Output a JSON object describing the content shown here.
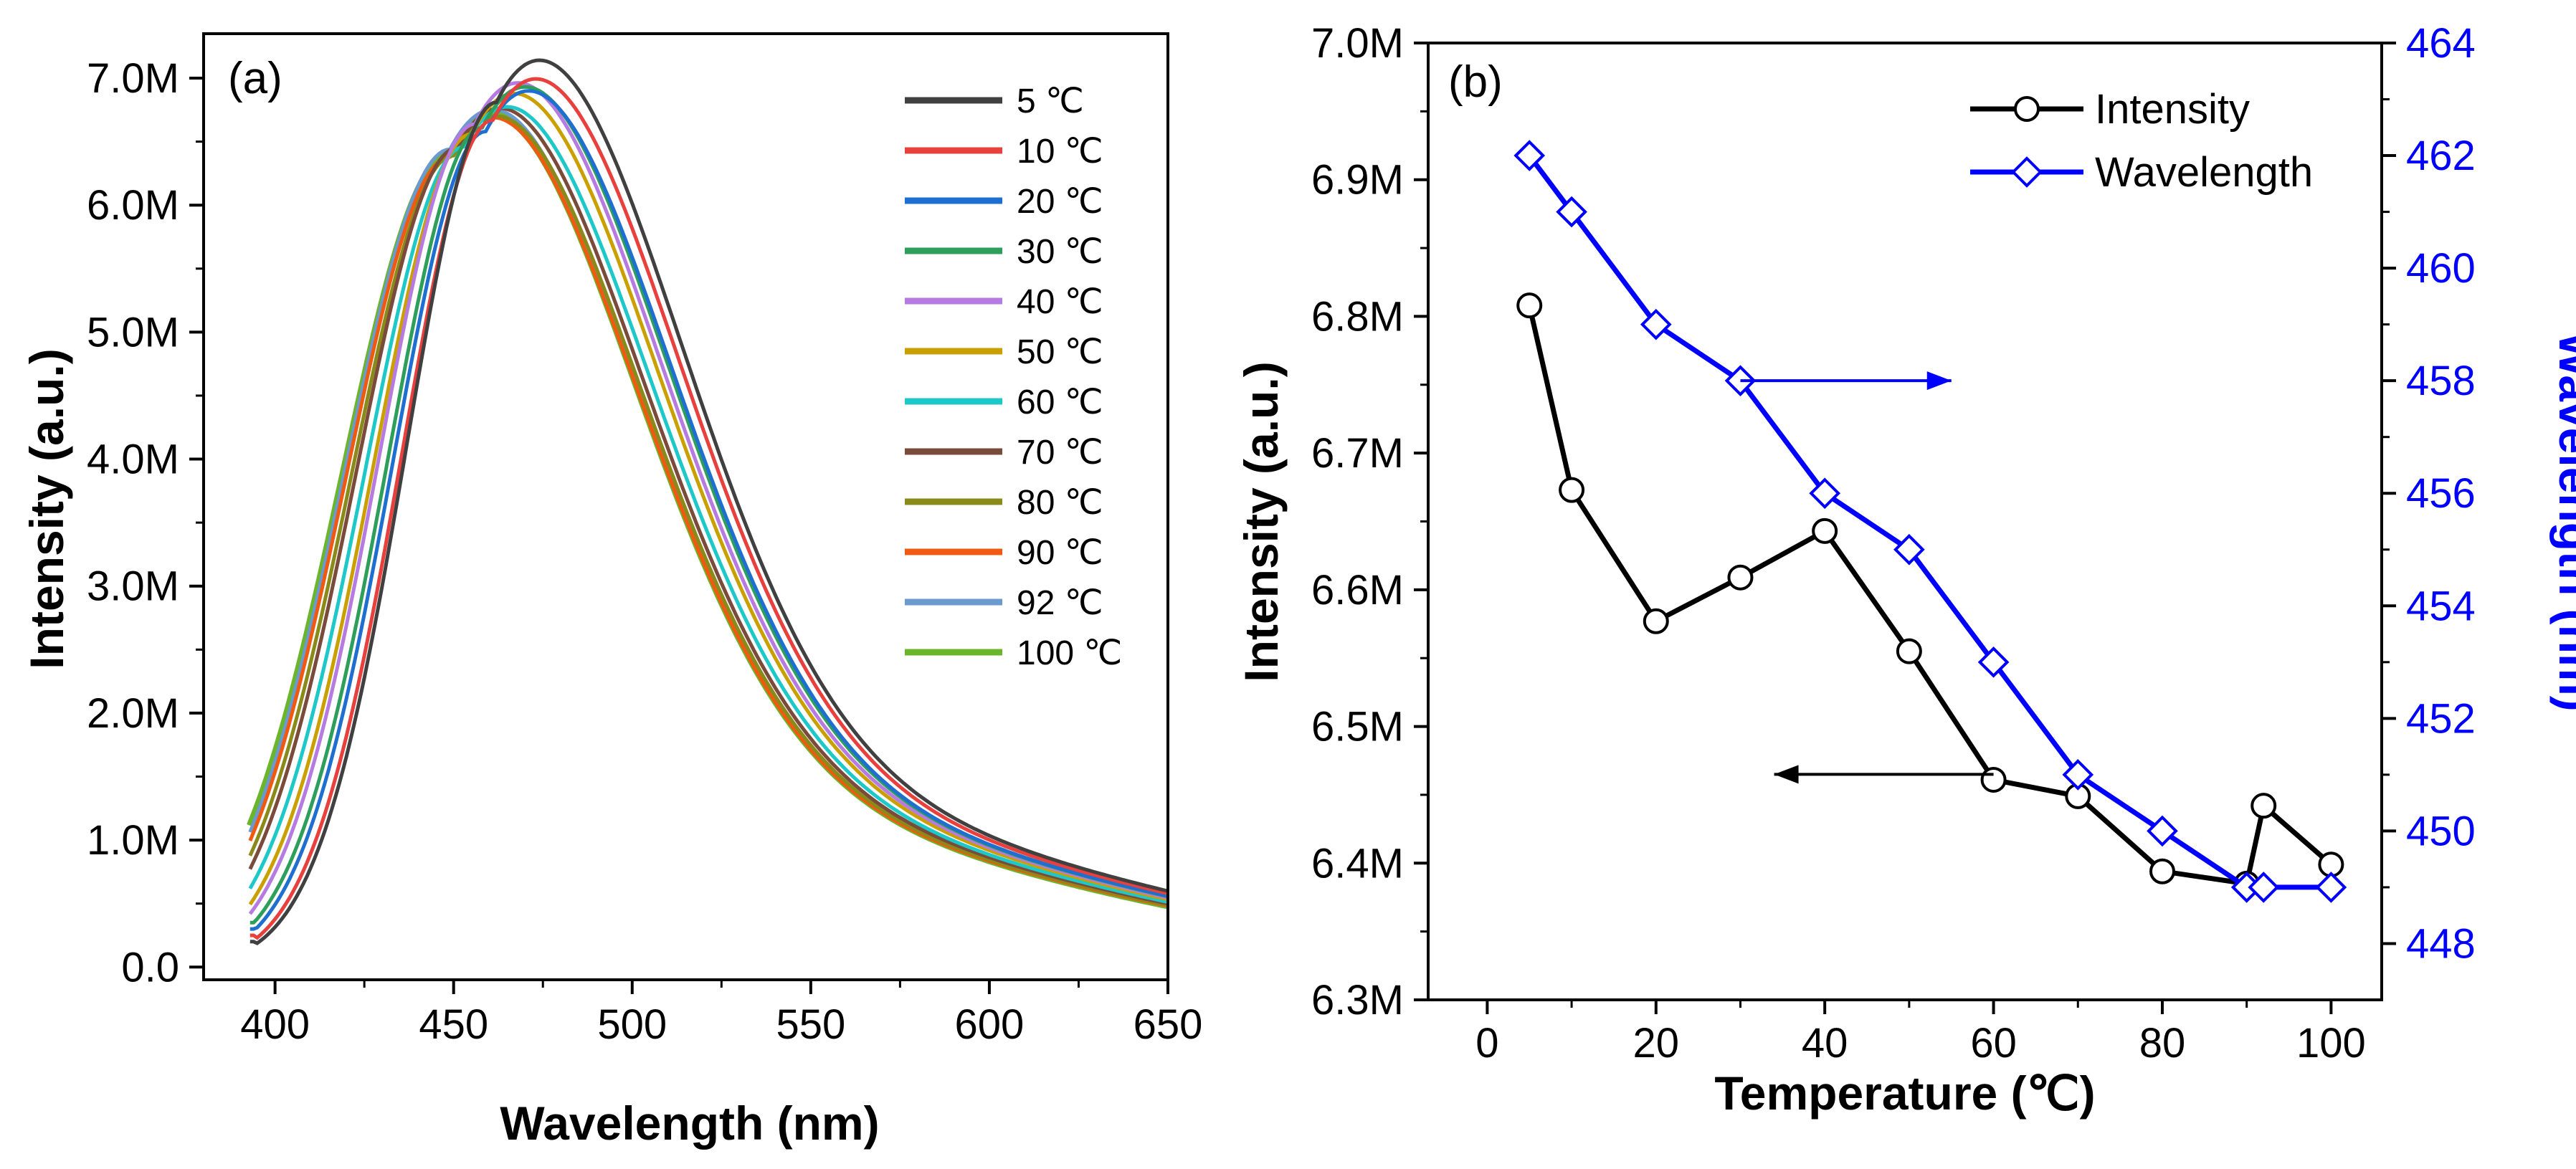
{
  "chart_data": [
    {
      "type": "line",
      "panel_label": "(a)",
      "xlabel": "Wavelength (nm)",
      "ylabel": "Intensity (a.u.)",
      "xlim": [
        380,
        650
      ],
      "ylim": [
        -0.1,
        7.35
      ],
      "x_ticks": [
        400,
        450,
        500,
        550,
        600,
        650
      ],
      "x_tick_labels": [
        "400",
        "450",
        "500",
        "550",
        "600",
        "650"
      ],
      "y_ticks": [
        0,
        1,
        2,
        3,
        4,
        5,
        6,
        7
      ],
      "y_tick_labels": [
        "0.0",
        "1.0M",
        "2.0M",
        "3.0M",
        "4.0M",
        "5.0M",
        "6.0M",
        "7.0M"
      ],
      "y_unit": "M",
      "legend_position": "top-right",
      "x_start": 393,
      "x_end": 650,
      "series": [
        {
          "name": "5 ℃",
          "color": "#404040",
          "peak_x": 462,
          "peak_y": 6.81,
          "start_y": 0.2
        },
        {
          "name": "10 ℃",
          "color": "#e8403c",
          "peak_x": 461,
          "peak_y": 6.67,
          "start_y": 0.25
        },
        {
          "name": "20 ℃",
          "color": "#1f6fd0",
          "peak_x": 459,
          "peak_y": 6.58,
          "start_y": 0.3
        },
        {
          "name": "30 ℃",
          "color": "#2e9e5b",
          "peak_x": 458,
          "peak_y": 6.61,
          "start_y": 0.35
        },
        {
          "name": "40 ℃",
          "color": "#b57be0",
          "peak_x": 456,
          "peak_y": 6.64,
          "start_y": 0.38
        },
        {
          "name": "50 ℃",
          "color": "#c9a000",
          "peak_x": 455,
          "peak_y": 6.56,
          "start_y": 0.45
        },
        {
          "name": "60 ℃",
          "color": "#1ec8c8",
          "peak_x": 453,
          "peak_y": 6.46,
          "start_y": 0.55
        },
        {
          "name": "70 ℃",
          "color": "#7a4a3a",
          "peak_x": 451,
          "peak_y": 6.45,
          "start_y": 0.62
        },
        {
          "name": "80 ℃",
          "color": "#8a8a1a",
          "peak_x": 450,
          "peak_y": 6.39,
          "start_y": 0.68
        },
        {
          "name": "90 ℃",
          "color": "#f05a10",
          "peak_x": 449,
          "peak_y": 6.38,
          "start_y": 0.72
        },
        {
          "name": "92 ℃",
          "color": "#6a9ad0",
          "peak_x": 449,
          "peak_y": 6.44,
          "start_y": 0.75
        },
        {
          "name": "100 ℃",
          "color": "#6ab52a",
          "peak_x": 449,
          "peak_y": 6.4,
          "start_y": 0.82
        }
      ]
    },
    {
      "type": "line",
      "panel_label": "(b)",
      "xlabel": "Temperature (℃)",
      "ylabel": "Intensity (a.u.)",
      "y2label": "Wavelength (nm)",
      "xlim": [
        -7,
        106
      ],
      "ylim": [
        6.3,
        7.0
      ],
      "y2lim": [
        447,
        464
      ],
      "x_ticks": [
        0,
        20,
        40,
        60,
        80,
        100
      ],
      "x_tick_labels": [
        "0",
        "20",
        "40",
        "60",
        "80",
        "100"
      ],
      "y_ticks": [
        6.3,
        6.4,
        6.5,
        6.6,
        6.7,
        6.8,
        6.9,
        7.0
      ],
      "y_tick_labels": [
        "6.3M",
        "6.4M",
        "6.5M",
        "6.6M",
        "6.7M",
        "6.8M",
        "6.9M",
        "7.0M"
      ],
      "y2_ticks": [
        448,
        450,
        452,
        454,
        456,
        458,
        460,
        462,
        464
      ],
      "y2_tick_labels": [
        "448",
        "450",
        "452",
        "454",
        "456",
        "458",
        "460",
        "462",
        "464"
      ],
      "legend_position": "top-right",
      "x": [
        5,
        10,
        20,
        30,
        40,
        50,
        60,
        70,
        80,
        90,
        92,
        100
      ],
      "series": [
        {
          "name": "Intensity",
          "axis": "left",
          "color": "#000000",
          "marker": "circle",
          "values": [
            6.808,
            6.673,
            6.577,
            6.609,
            6.643,
            6.555,
            6.461,
            6.449,
            6.394,
            6.385,
            6.442,
            6.399
          ]
        },
        {
          "name": "Wavelength",
          "axis": "right",
          "color": "#0000ff",
          "marker": "diamond",
          "values": [
            462,
            461,
            459,
            458,
            456,
            455,
            453,
            451,
            450,
            449,
            449,
            449
          ]
        }
      ],
      "annotations": [
        {
          "type": "arrow",
          "direction": "right",
          "from": [
            30,
            458
          ],
          "to": [
            55,
            458
          ],
          "axis": "right",
          "color": "#0000ff"
        },
        {
          "type": "arrow",
          "direction": "left",
          "from": [
            60,
            6.465
          ],
          "to": [
            34,
            6.465
          ],
          "axis": "left",
          "color": "#000000"
        }
      ]
    }
  ]
}
